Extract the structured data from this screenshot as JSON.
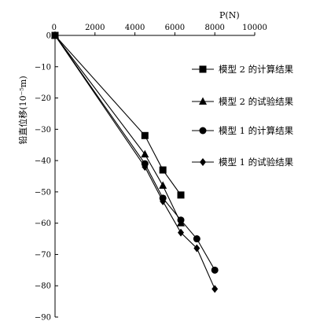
{
  "chart_data": {
    "type": "line",
    "xlabel": "P(N)",
    "ylabel": "铅直位移(10⁻⁵m)",
    "xlim": [
      0,
      10000
    ],
    "ylim": [
      -90,
      0
    ],
    "x_ticks": [
      "0",
      "2000",
      "4000",
      "6000",
      "8000",
      "10000"
    ],
    "y_ticks": [
      "0",
      "−10",
      "−20",
      "−30",
      "−40",
      "−50",
      "−60",
      "−70",
      "−80",
      "−90"
    ],
    "x_axis_position": "top",
    "grid": false,
    "legend_position": "right",
    "series": [
      {
        "name": "模型 2 的计算结果",
        "marker": "square",
        "x": [
          0,
          4500,
          5400,
          6300
        ],
        "y": [
          0,
          -32,
          -43,
          -51
        ]
      },
      {
        "name": "模型 2 的试验结果",
        "marker": "triangle",
        "x": [
          0,
          4500,
          5400,
          6300
        ],
        "y": [
          0,
          -38,
          -48,
          -60
        ]
      },
      {
        "name": "模型 1 的计算结果",
        "marker": "circle",
        "x": [
          0,
          4500,
          5400,
          6300,
          7100,
          8000
        ],
        "y": [
          0,
          -41,
          -52,
          -59,
          -65,
          -75
        ]
      },
      {
        "name": "模型 1 的试验结果",
        "marker": "diamond",
        "x": [
          0,
          4500,
          5400,
          6300,
          7100,
          8000
        ],
        "y": [
          0,
          -42,
          -53,
          -63,
          -68,
          -81
        ]
      }
    ]
  }
}
